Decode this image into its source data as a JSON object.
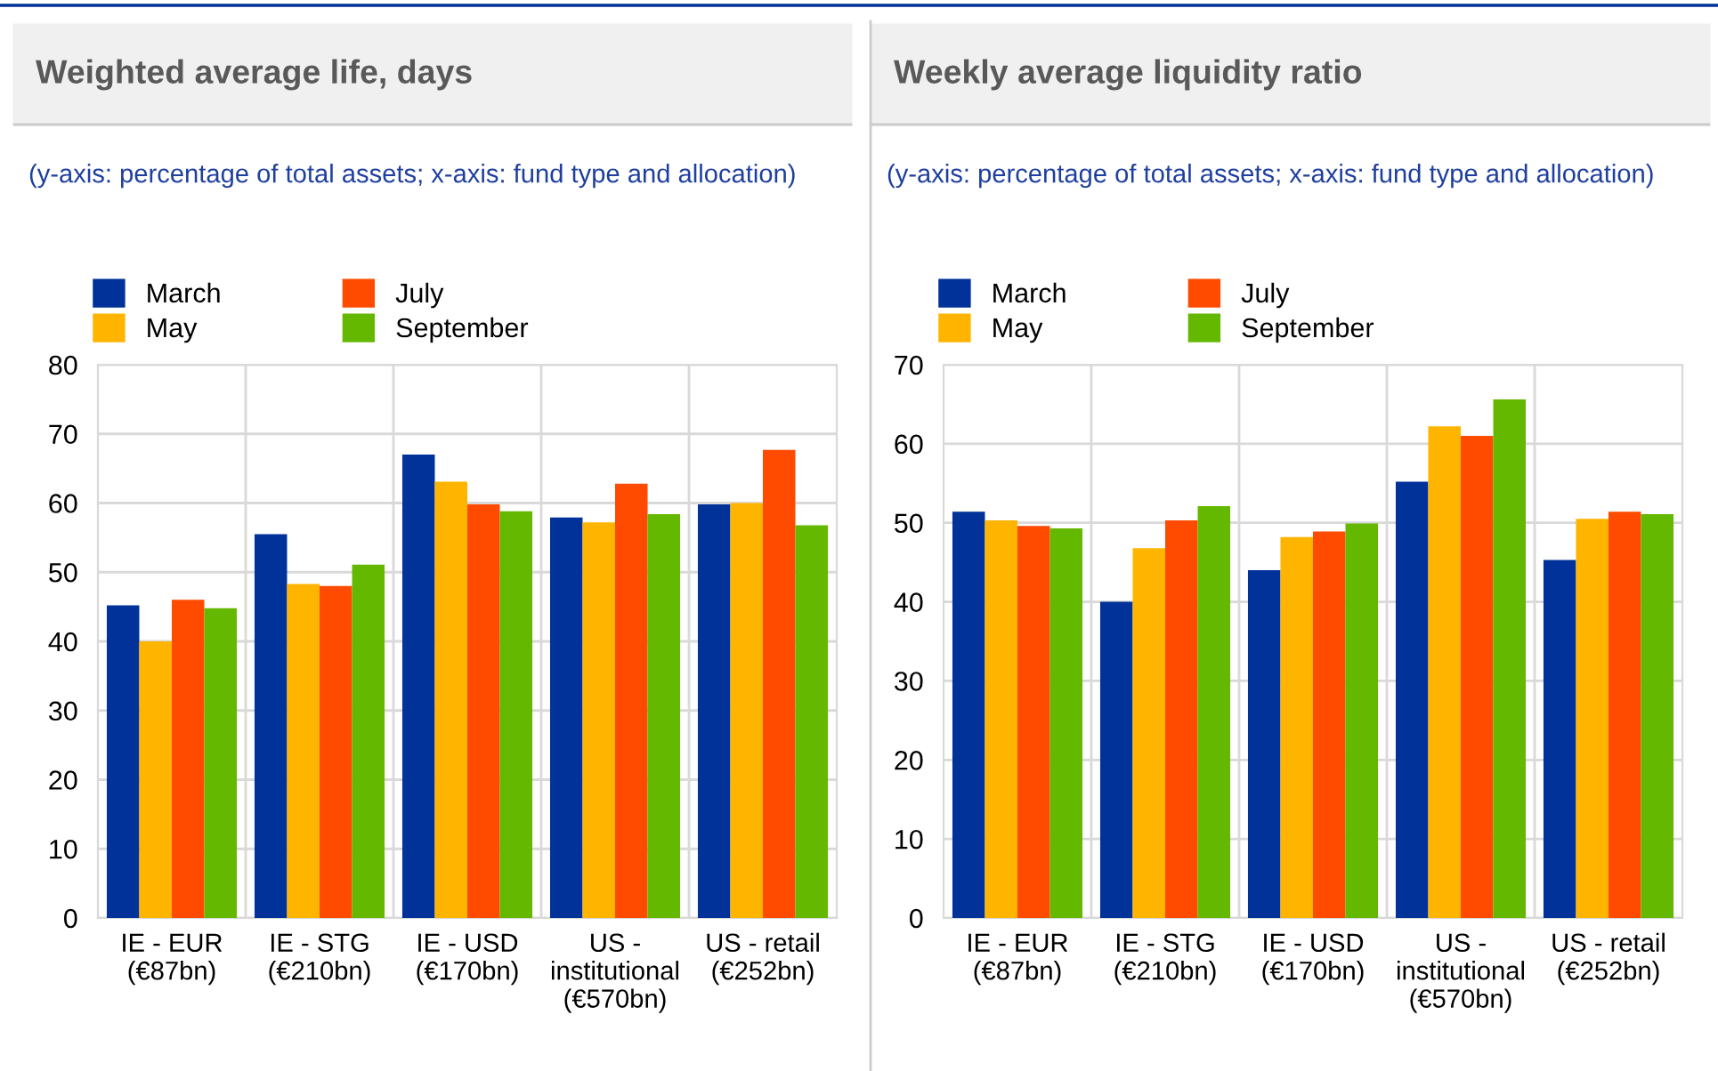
{
  "chart_data": [
    {
      "type": "bar",
      "title": "Weighted average life, days",
      "subtitle": "(y-axis: percentage of total assets; x-axis: fund type and allocation)",
      "categories": [
        "IE - EUR\n(€87bn)",
        "IE - STG\n(€210bn)",
        "IE - USD\n(€170bn)",
        "US -\ninstitutional\n(€570bn)",
        "US - retail\n(€252bn)"
      ],
      "series": [
        {
          "name": "March",
          "color": "#003299",
          "values": [
            45.2,
            55.5,
            67.0,
            57.9,
            59.8
          ]
        },
        {
          "name": "May",
          "color": "#ffb400",
          "values": [
            40.0,
            48.3,
            63.1,
            57.2,
            60.0
          ]
        },
        {
          "name": "July",
          "color": "#ff4b00",
          "values": [
            46.0,
            48.0,
            59.8,
            62.8,
            67.7
          ]
        },
        {
          "name": "September",
          "color": "#65b800",
          "values": [
            44.8,
            51.1,
            58.8,
            58.4,
            56.8
          ]
        }
      ],
      "ylim": [
        0,
        80
      ],
      "yticks": [
        0,
        10,
        20,
        30,
        40,
        50,
        60,
        70,
        80
      ],
      "grid": true,
      "legend": "top left"
    },
    {
      "type": "bar",
      "title": "Weekly average liquidity ratio",
      "subtitle": "(y-axis: percentage of total assets; x-axis: fund type and allocation)",
      "categories": [
        "IE - EUR\n(€87bn)",
        "IE - STG\n(€210bn)",
        "IE - USD\n(€170bn)",
        "US -\ninstitutional\n(€570bn)",
        "US - retail\n(€252bn)"
      ],
      "series": [
        {
          "name": "March",
          "color": "#003299",
          "values": [
            51.4,
            40.0,
            44.0,
            55.2,
            45.3
          ]
        },
        {
          "name": "May",
          "color": "#ffb400",
          "values": [
            50.3,
            46.8,
            48.2,
            62.2,
            50.5
          ]
        },
        {
          "name": "July",
          "color": "#ff4b00",
          "values": [
            49.6,
            50.3,
            48.9,
            61.0,
            51.4
          ]
        },
        {
          "name": "September",
          "color": "#65b800",
          "values": [
            49.3,
            52.1,
            49.9,
            65.6,
            51.1
          ]
        }
      ],
      "ylim": [
        0,
        70
      ],
      "yticks": [
        0,
        10,
        20,
        30,
        40,
        50,
        60,
        70
      ],
      "grid": true,
      "legend": "top left"
    }
  ]
}
